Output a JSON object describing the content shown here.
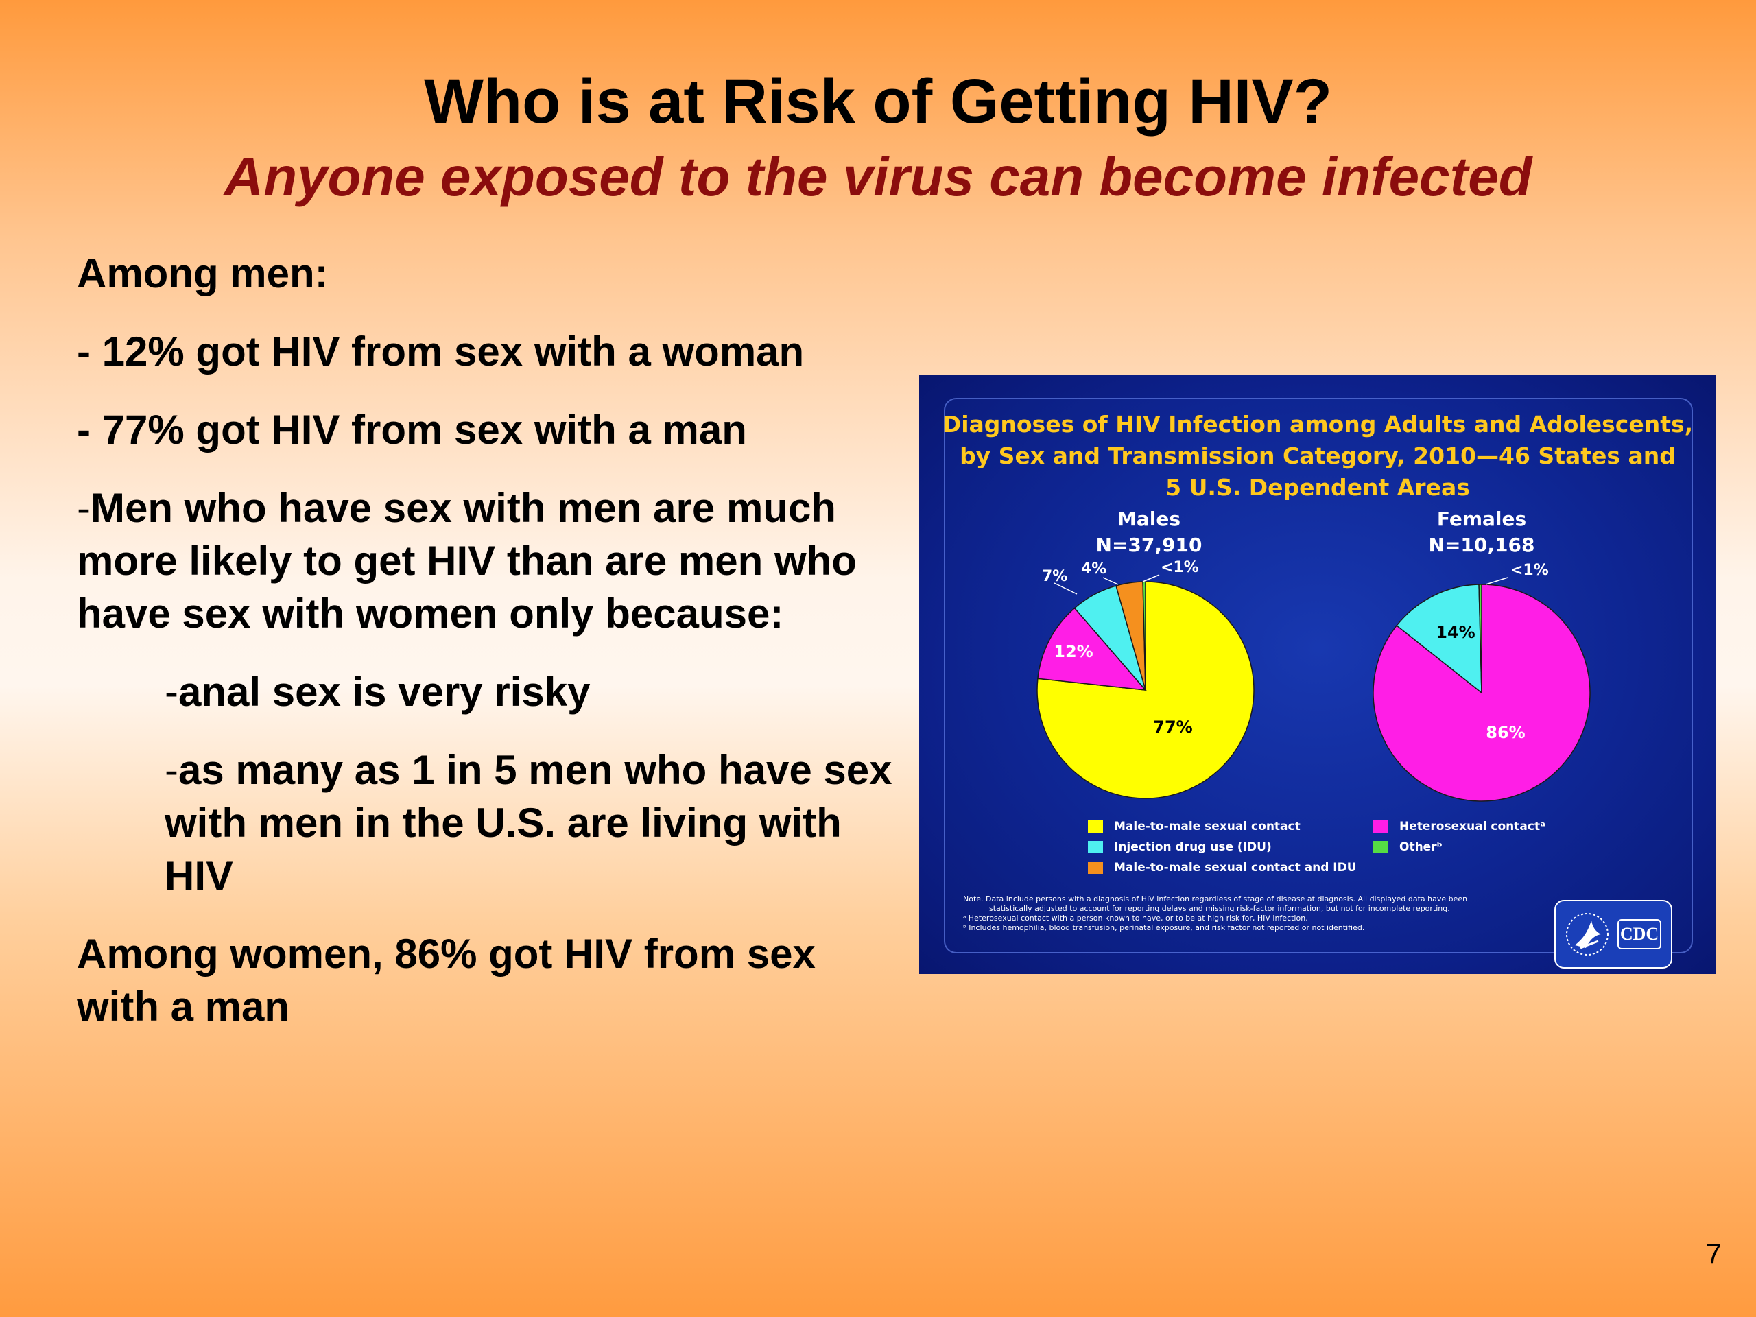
{
  "slide": {
    "title": "Who is at Risk of Getting HIV?",
    "subtitle": "Anyone exposed to the virus can become infected",
    "page_number": "7"
  },
  "bullets": [
    {
      "dash": "",
      "text": "Among men:"
    },
    {
      "dash": "- ",
      "text": "12% got HIV from sex with a woman"
    },
    {
      "dash": "- ",
      "text": "77% got HIV from sex with a man"
    },
    {
      "dash": "-",
      "text": "Men who have sex with men are much more likely to get HIV than are men who have sex with women only because:"
    },
    {
      "dash": "-",
      "text": "anal sex is very risky"
    },
    {
      "dash": "-",
      "text": "as many as 1 in 5 men who have sex with men in the U.S. are living with HIV"
    },
    {
      "dash": "",
      "text": "Among women, 86% got HIV from sex with a man"
    }
  ],
  "figure": {
    "title_lines": [
      "Diagnoses of HIV Infection among Adults and Adolescents,",
      "by Sex and Transmission Category, 2010—46 States and",
      "5 U.S. Dependent Areas"
    ],
    "legend": [
      {
        "label": "Male-to-male sexual contact",
        "color": "#ffff00"
      },
      {
        "label": "Injection drug use (IDU)",
        "color": "#4ff0f0"
      },
      {
        "label": "Male-to-male sexual contact and IDU",
        "color": "#f5901e"
      },
      {
        "label": "Heterosexual contactᵃ",
        "color": "#ff1ee6"
      },
      {
        "label": "Otherᵇ",
        "color": "#55dd44"
      }
    ],
    "notes": [
      "Note. Data include persons with a diagnosis of HIV infection regardless of stage of disease at diagnosis. All displayed data have been",
      "statistically adjusted to account for reporting delays and missing risk-factor information, but not for incomplete reporting.",
      "ᵃ Heterosexual contact with a person known to have, or to be at high risk for, HIV infection.",
      "ᵇ Includes hemophilia, blood transfusion, perinatal exposure, and risk factor not reported or not identified."
    ],
    "logo_text": "CDC"
  },
  "chart_data": [
    {
      "type": "pie",
      "title": "Males",
      "subtitle": "N=37,910",
      "slices": [
        {
          "name": "Male-to-male sexual contact",
          "value": 77,
          "label": "77%",
          "color": "#ffff00"
        },
        {
          "name": "Heterosexual contact",
          "value": 12,
          "label": "12%",
          "color": "#ff1ee6"
        },
        {
          "name": "Injection drug use (IDU)",
          "value": 7,
          "label": "7%",
          "color": "#4ff0f0"
        },
        {
          "name": "Male-to-male sexual contact and IDU",
          "value": 4,
          "label": "4%",
          "color": "#f5901e"
        },
        {
          "name": "Other",
          "value": 0.4,
          "label": "<1%",
          "color": "#55dd44"
        }
      ]
    },
    {
      "type": "pie",
      "title": "Females",
      "subtitle": "N=10,168",
      "slices": [
        {
          "name": "Heterosexual contact",
          "value": 86,
          "label": "86%",
          "color": "#ff1ee6"
        },
        {
          "name": "Injection drug use (IDU)",
          "value": 14,
          "label": "14%",
          "color": "#4ff0f0"
        },
        {
          "name": "Other",
          "value": 0.4,
          "label": "<1%",
          "color": "#55dd44"
        }
      ]
    }
  ]
}
